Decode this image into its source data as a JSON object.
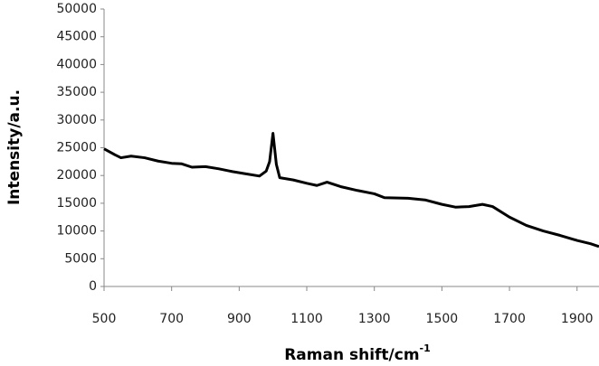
{
  "chart_data": {
    "type": "line",
    "y_label": "Intensity/a.u.",
    "x_label": {
      "text": "Raman shift/cm",
      "superscript": "-1"
    },
    "x": [
      500,
      530,
      550,
      580,
      620,
      660,
      700,
      730,
      760,
      800,
      840,
      880,
      920,
      960,
      980,
      990,
      1000,
      1010,
      1020,
      1060,
      1100,
      1130,
      1160,
      1200,
      1250,
      1300,
      1330,
      1400,
      1450,
      1500,
      1540,
      1580,
      1620,
      1650,
      1700,
      1750,
      1800,
      1850,
      1900,
      1940,
      1965
    ],
    "series": [
      {
        "name": "spectrum",
        "color": "#000000",
        "values": [
          24800,
          23800,
          23200,
          23500,
          23200,
          22600,
          22200,
          22100,
          21500,
          21600,
          21200,
          20700,
          20300,
          19900,
          20800,
          22500,
          27600,
          22000,
          19600,
          19200,
          18600,
          18200,
          18800,
          18000,
          17300,
          16700,
          16000,
          15900,
          15600,
          14800,
          14300,
          14400,
          14800,
          14400,
          12500,
          11000,
          10000,
          9200,
          8300,
          7700,
          7200
        ]
      }
    ],
    "xlim": [
      500,
      1965
    ],
    "ylim": [
      0,
      50000
    ],
    "xticks": [
      500,
      700,
      900,
      1100,
      1300,
      1500,
      1700,
      1900
    ],
    "yticks": [
      0,
      5000,
      10000,
      15000,
      20000,
      25000,
      30000,
      35000,
      40000,
      45000,
      50000
    ],
    "grid": false
  }
}
